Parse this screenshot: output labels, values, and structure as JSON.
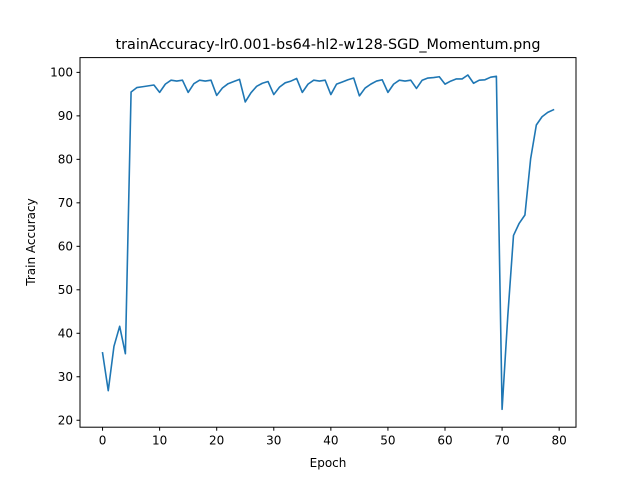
{
  "chart_data": {
    "type": "line",
    "title": "trainAccuracy-lr0.001-bs64-hl2-w128-SGD_Momentum.png",
    "xlabel": "Epoch",
    "ylabel": "Train Accuracy",
    "xlim": [
      -3.95,
      82.95
    ],
    "ylim": [
      18.4,
      103.4
    ],
    "xticks": [
      0,
      10,
      20,
      30,
      40,
      50,
      60,
      70,
      80
    ],
    "yticks": [
      20,
      30,
      40,
      50,
      60,
      70,
      80,
      90,
      100
    ],
    "grid": false,
    "series": [
      {
        "color": "#1f77b4",
        "x": [
          0,
          1,
          2,
          3,
          4,
          5,
          6,
          7,
          8,
          9,
          10,
          11,
          12,
          13,
          14,
          15,
          16,
          17,
          18,
          19,
          20,
          21,
          22,
          23,
          24,
          25,
          26,
          27,
          28,
          29,
          30,
          31,
          32,
          33,
          34,
          35,
          36,
          37,
          38,
          39,
          40,
          41,
          42,
          43,
          44,
          45,
          46,
          47,
          48,
          49,
          50,
          51,
          52,
          53,
          54,
          55,
          56,
          57,
          58,
          59,
          60,
          61,
          62,
          63,
          64,
          65,
          66,
          67,
          68,
          69,
          70,
          71,
          72,
          73,
          74,
          75,
          76,
          77,
          78,
          79
        ],
        "values": [
          35.5,
          26.8,
          37.0,
          41.6,
          35.3,
          95.5,
          96.5,
          96.7,
          96.9,
          97.1,
          95.4,
          97.3,
          98.2,
          98.0,
          98.2,
          95.4,
          97.4,
          98.2,
          98.0,
          98.2,
          94.7,
          96.4,
          97.4,
          97.9,
          98.4,
          93.2,
          95.3,
          96.8,
          97.5,
          97.9,
          94.9,
          96.6,
          97.6,
          98.0,
          98.6,
          95.4,
          97.3,
          98.2,
          98.0,
          98.2,
          94.9,
          97.3,
          97.8,
          98.3,
          98.7,
          94.6,
          96.4,
          97.3,
          98.0,
          98.3,
          95.4,
          97.3,
          98.2,
          98.0,
          98.2,
          96.3,
          98.2,
          98.7,
          98.8,
          99.0,
          97.3,
          98.0,
          98.5,
          98.5,
          99.4,
          97.5,
          98.2,
          98.3,
          98.9,
          99.1,
          22.5,
          44.0,
          62.5,
          65.3,
          67.2,
          80.1,
          87.9,
          89.8,
          90.8,
          91.4
        ]
      }
    ]
  }
}
